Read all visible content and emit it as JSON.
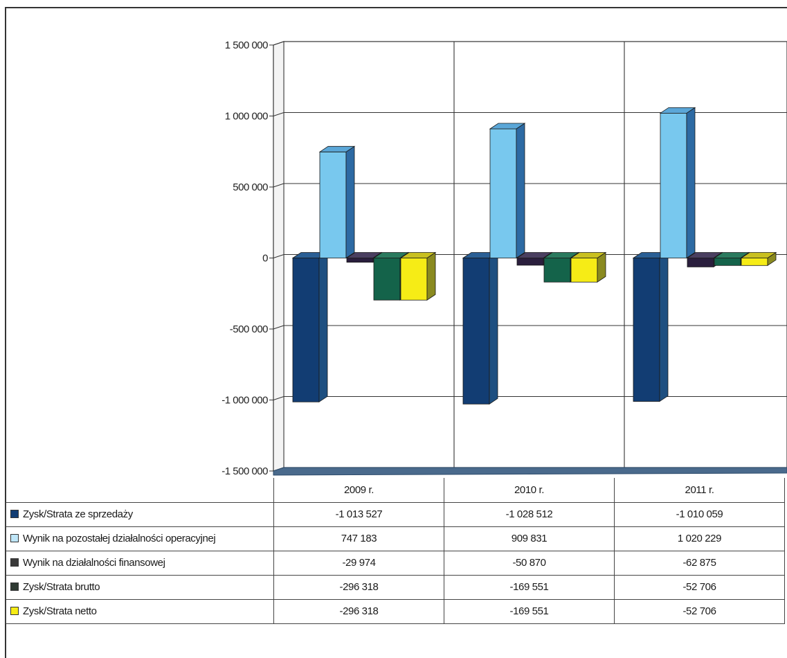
{
  "chart_data": {
    "type": "bar",
    "categories": [
      "2009 r.",
      "2010 r.",
      "2011 r."
    ],
    "series": [
      {
        "name": "Zysk/Strata ze sprzedaży",
        "values": [
          -1013527,
          -1028512,
          -1010059
        ],
        "display": [
          "-1 013 527",
          "-1 028 512",
          "-1 010 059"
        ],
        "color": "#123d73",
        "side": "#1e4f80",
        "top": "#2a5f95"
      },
      {
        "name": "Wynik na pozostałej działalności operacyjnej",
        "values": [
          747183,
          909831,
          1020229
        ],
        "display": [
          "747 183",
          "909 831",
          "1 020 229"
        ],
        "color": "#78c8ee",
        "side": "#2d6aa3",
        "top": "#5ba7d8"
      },
      {
        "name": "Wynik na działalności finansowej",
        "values": [
          -29974,
          -50870,
          -62875
        ],
        "display": [
          "-29 974",
          "-50 870",
          "-62 875"
        ],
        "color": "#2a1e3d",
        "side": "#3a2f50",
        "top": "#4a3f60"
      },
      {
        "name": "Zysk/Strata brutto",
        "values": [
          -296318,
          -169551,
          -52706
        ],
        "display": [
          "-296 318",
          "-169 551",
          "-52 706"
        ],
        "color": "#14634a",
        "side": "#0f4a38",
        "top": "#2a7a5e"
      },
      {
        "name": "Zysk/Strata netto",
        "values": [
          -296318,
          -169551,
          -52706
        ],
        "display": [
          "-296 318",
          "-169 551",
          "-52 706"
        ],
        "color": "#f6ec16",
        "side": "#8a8a20",
        "top": "#c9c020"
      }
    ],
    "ylim": [
      -1500000,
      1500000
    ],
    "yticks": [
      {
        "v": 1500000,
        "label": "1 500 000"
      },
      {
        "v": 1000000,
        "label": "1 000 000"
      },
      {
        "v": 500000,
        "label": "500 000"
      },
      {
        "v": 0,
        "label": "0"
      },
      {
        "v": -500000,
        "label": "-500 000"
      },
      {
        "v": -1000000,
        "label": "-1 000 000"
      },
      {
        "v": -1500000,
        "label": "-1 500 000"
      }
    ],
    "grid": true,
    "legend": "data-table"
  }
}
